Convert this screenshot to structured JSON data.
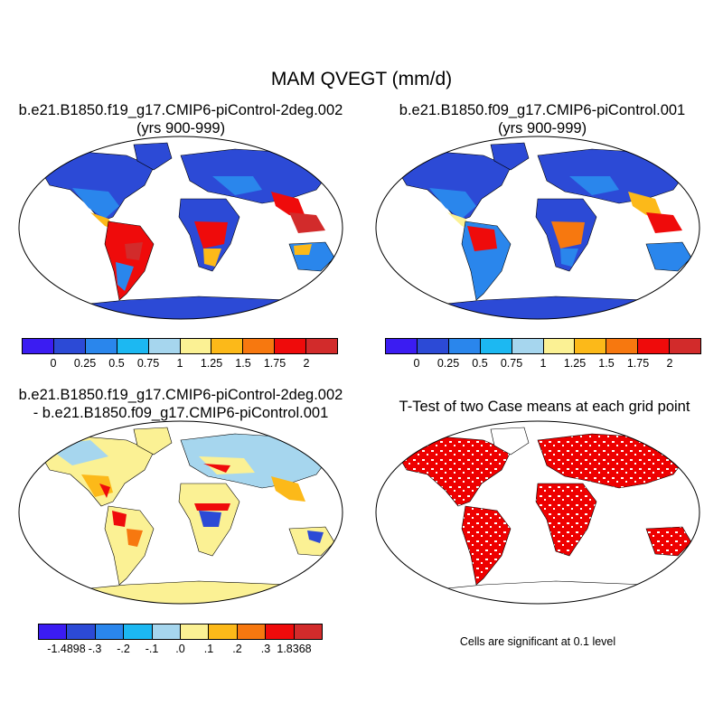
{
  "title": "MAM QVEGT (mm/d)",
  "panels": {
    "p1": {
      "title_line1": "b.e21.B1850.f19_g17.CMIP6-piControl-2deg.002",
      "title_line2": "(yrs 900-999)"
    },
    "p2": {
      "title_line1": "b.e21.B1850.f09_g17.CMIP6-piControl.001",
      "title_line2": "(yrs 900-999)"
    },
    "p3": {
      "title_line1": "b.e21.B1850.f19_g17.CMIP6-piControl-2deg.002",
      "title_line2": "- b.e21.B1850.f09_g17.CMIP6-piControl.001"
    },
    "p4": {
      "title_line1": "T-Test of two Case means at each grid point"
    }
  },
  "colorbar_top": {
    "colors": [
      "#3b1cf2",
      "#2c4ad6",
      "#2a86ec",
      "#1cb8f2",
      "#a6d6ee",
      "#fbf194",
      "#fcb919",
      "#f7780f",
      "#ef0b0b",
      "#d22b2b"
    ],
    "labels": [
      "0",
      "0.25",
      "0.5",
      "0.75",
      "1",
      "1.25",
      "1.5",
      "1.75",
      "2"
    ]
  },
  "colorbar_diff": {
    "colors": [
      "#3b1cf2",
      "#2c4ad6",
      "#2a86ec",
      "#1cb8f2",
      "#a6d6ee",
      "#fbf194",
      "#fcb919",
      "#f7780f",
      "#ef0b0b",
      "#d22b2b"
    ],
    "labels": [
      "-1.4898",
      "-.3",
      "-.2",
      "-.1",
      ".0",
      ".1",
      ".2",
      ".3",
      "1.8368"
    ]
  },
  "significance_note": "Cells are significant at 0.1 level",
  "colors": {
    "land_outline": "#000000",
    "significant": "#ee0000"
  }
}
